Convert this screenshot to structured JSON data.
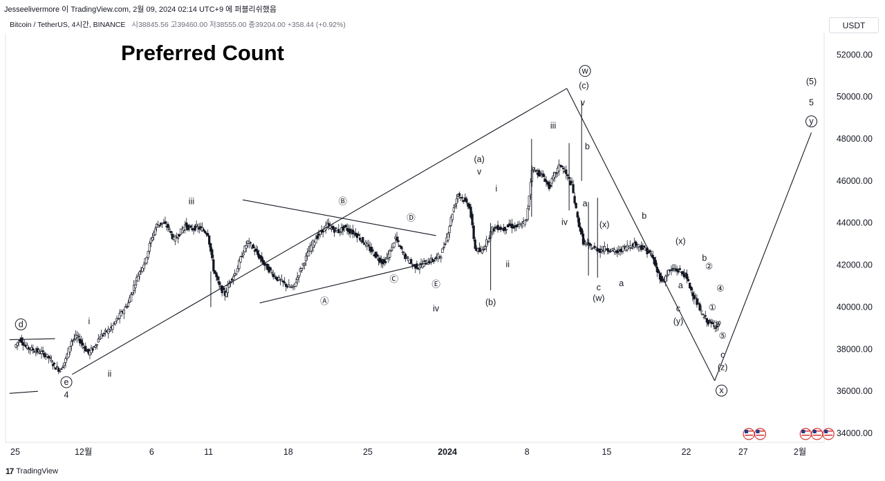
{
  "header": {
    "attribution": "Jesseelivermore 이 TradingView.com, 2월 09, 2024 02:14 UTC+9 에 퍼블리쉬했음"
  },
  "symbol": {
    "name": "Bitcoin / TetherUS, 4시간, BINANCE",
    "ohlc": "시38845.56  고39460.00  저38555.00  종39204.00  +358.44 (+0.92%)"
  },
  "currency": "USDT",
  "footer": {
    "brand": "TradingView",
    "logo": "17"
  },
  "chart_data": {
    "type": "candlestick",
    "title": "Preferred Count",
    "ylim": [
      33600,
      53000
    ],
    "y_ticks": [
      "52000.00",
      "50000.00",
      "48000.00",
      "46000.00",
      "44000.00",
      "42000.00",
      "40000.00",
      "38000.00",
      "36000.00",
      "34000.00"
    ],
    "x_ticks": [
      {
        "label": "25",
        "x": 0
      },
      {
        "label": "12월",
        "x": 6
      },
      {
        "label": "6",
        "x": 12
      },
      {
        "label": "11",
        "x": 17
      },
      {
        "label": "18",
        "x": 24
      },
      {
        "label": "25",
        "x": 31
      },
      {
        "label": "2024",
        "x": 38,
        "bold": true
      },
      {
        "label": "8",
        "x": 45
      },
      {
        "label": "15",
        "x": 52
      },
      {
        "label": "22",
        "x": 59
      },
      {
        "label": "27",
        "x": 64
      },
      {
        "label": "2월",
        "x": 69
      }
    ],
    "price_series": [
      [
        0,
        38100
      ],
      [
        0.5,
        38500
      ],
      [
        1,
        38100
      ],
      [
        1.5,
        38000
      ],
      [
        2,
        37900
      ],
      [
        2.5,
        37800
      ],
      [
        3,
        37600
      ],
      [
        3.5,
        37200
      ],
      [
        4,
        37000
      ],
      [
        4.5,
        37500
      ],
      [
        5,
        38400
      ],
      [
        5.5,
        38600
      ],
      [
        6,
        38200
      ],
      [
        6.5,
        37800
      ],
      [
        7,
        38100
      ],
      [
        7.5,
        38600
      ],
      [
        8,
        38800
      ],
      [
        8.5,
        39000
      ],
      [
        9,
        39400
      ],
      [
        9.5,
        39800
      ],
      [
        10,
        40200
      ],
      [
        10.5,
        41000
      ],
      [
        11,
        41700
      ],
      [
        11.5,
        42200
      ],
      [
        12,
        43200
      ],
      [
        12.5,
        43900
      ],
      [
        13,
        44000
      ],
      [
        13.5,
        43800
      ],
      [
        14,
        43200
      ],
      [
        14.5,
        43500
      ],
      [
        15,
        43900
      ],
      [
        15.5,
        43700
      ],
      [
        16,
        43800
      ],
      [
        16.5,
        43700
      ],
      [
        17,
        43500
      ],
      [
        17.5,
        41800
      ],
      [
        18,
        41000
      ],
      [
        18.5,
        40600
      ],
      [
        19,
        41300
      ],
      [
        19.5,
        41700
      ],
      [
        20,
        42500
      ],
      [
        20.5,
        43100
      ],
      [
        21,
        42800
      ],
      [
        21.5,
        42400
      ],
      [
        22,
        42000
      ],
      [
        22.5,
        41700
      ],
      [
        23,
        41400
      ],
      [
        23.5,
        41200
      ],
      [
        24,
        41000
      ],
      [
        24.5,
        40900
      ],
      [
        25,
        41600
      ],
      [
        25.5,
        42200
      ],
      [
        26,
        42800
      ],
      [
        26.5,
        43300
      ],
      [
        27,
        43600
      ],
      [
        27.5,
        43900
      ],
      [
        28,
        43700
      ],
      [
        28.5,
        43600
      ],
      [
        29,
        43800
      ],
      [
        29.5,
        43600
      ],
      [
        30,
        43500
      ],
      [
        30.5,
        43200
      ],
      [
        31,
        42900
      ],
      [
        31.5,
        42600
      ],
      [
        32,
        42300
      ],
      [
        32.5,
        42100
      ],
      [
        33,
        42600
      ],
      [
        33.5,
        43300
      ],
      [
        34,
        42700
      ],
      [
        34.5,
        42300
      ],
      [
        35,
        42000
      ],
      [
        35.5,
        41900
      ],
      [
        36,
        42100
      ],
      [
        36.5,
        42200
      ],
      [
        37,
        42300
      ],
      [
        37.5,
        42500
      ],
      [
        38,
        43300
      ],
      [
        38.5,
        44500
      ],
      [
        39,
        45400
      ],
      [
        39.5,
        45100
      ],
      [
        40,
        44800
      ],
      [
        40.5,
        42800
      ],
      [
        41,
        42600
      ],
      [
        41.5,
        43100
      ],
      [
        42,
        43700
      ],
      [
        42.5,
        43800
      ],
      [
        43,
        43700
      ],
      [
        43.5,
        43900
      ],
      [
        44,
        43800
      ],
      [
        44.5,
        43900
      ],
      [
        45,
        44100
      ],
      [
        45.5,
        46600
      ],
      [
        46,
        46400
      ],
      [
        46.5,
        46200
      ],
      [
        47,
        45700
      ],
      [
        47.5,
        46300
      ],
      [
        48,
        46800
      ],
      [
        48.5,
        46300
      ],
      [
        49,
        45800
      ],
      [
        49.5,
        44200
      ],
      [
        50,
        43100
      ],
      [
        50.5,
        42900
      ],
      [
        51,
        42800
      ],
      [
        51.5,
        42700
      ],
      [
        52,
        42800
      ],
      [
        52.5,
        42700
      ],
      [
        53,
        42600
      ],
      [
        53.5,
        42800
      ],
      [
        54,
        42900
      ],
      [
        54.5,
        43000
      ],
      [
        55,
        42900
      ],
      [
        55.5,
        42700
      ],
      [
        56,
        42500
      ],
      [
        56.5,
        41700
      ],
      [
        57,
        41200
      ],
      [
        57.5,
        41700
      ],
      [
        58,
        41800
      ],
      [
        58.5,
        41700
      ],
      [
        59,
        41500
      ],
      [
        59.5,
        40800
      ],
      [
        60,
        40200
      ],
      [
        60.5,
        39600
      ],
      [
        61,
        39300
      ],
      [
        61.5,
        39100
      ],
      [
        62,
        39200
      ]
    ],
    "trendlines": [
      {
        "points": [
          [
            5,
            36800
          ],
          [
            48.5,
            50400
          ]
        ]
      },
      {
        "points": [
          [
            20,
            45100
          ],
          [
            37,
            43400
          ]
        ]
      },
      {
        "points": [
          [
            21.5,
            40200
          ],
          [
            37,
            42200
          ]
        ]
      },
      {
        "points": [
          [
            48.5,
            50400
          ],
          [
            61.5,
            36500
          ]
        ]
      },
      {
        "points": [
          [
            61.5,
            36500
          ],
          [
            70,
            48300
          ]
        ]
      },
      {
        "points": [
          [
            -0.5,
            38450
          ],
          [
            3.5,
            38500
          ]
        ]
      },
      {
        "points": [
          [
            -0.5,
            35900
          ],
          [
            2,
            36000
          ]
        ]
      }
    ],
    "annotations": [
      {
        "text": "d",
        "x": 0.5,
        "y": 39050,
        "circled": true
      },
      {
        "text": "e",
        "x": 4.5,
        "y": 36300,
        "circled": true
      },
      {
        "text": "4",
        "x": 4.5,
        "y": 35700
      },
      {
        "text": "i",
        "x": 6.5,
        "y": 39200
      },
      {
        "text": "ii",
        "x": 8.3,
        "y": 36700
      },
      {
        "text": "iii",
        "x": 15.5,
        "y": 44900
      },
      {
        "text": "Ⓐ",
        "x": 27.2,
        "y": 40150
      },
      {
        "text": "Ⓑ",
        "x": 28.8,
        "y": 44900
      },
      {
        "text": "Ⓒ",
        "x": 33.3,
        "y": 41200
      },
      {
        "text": "Ⓓ",
        "x": 34.8,
        "y": 44100
      },
      {
        "text": "Ⓔ",
        "x": 37.0,
        "y": 40950
      },
      {
        "text": "iv",
        "x": 37.0,
        "y": 39800
      },
      {
        "text": "(a)",
        "x": 40.8,
        "y": 46900
      },
      {
        "text": "v",
        "x": 40.8,
        "y": 46300
      },
      {
        "text": "i",
        "x": 42.3,
        "y": 45500
      },
      {
        "text": "ii",
        "x": 43.3,
        "y": 41900
      },
      {
        "text": "(b)",
        "x": 41.8,
        "y": 40100
      },
      {
        "text": "iii",
        "x": 47.3,
        "y": 48500
      },
      {
        "text": "iv",
        "x": 48.3,
        "y": 43900
      },
      {
        "text": "v",
        "x": 49.9,
        "y": 49600
      },
      {
        "text": "w",
        "x": 50.1,
        "y": 51100,
        "circled": true
      },
      {
        "text": "(c)",
        "x": 50.0,
        "y": 50400
      },
      {
        "text": "b",
        "x": 50.3,
        "y": 47500
      },
      {
        "text": "a",
        "x": 50.1,
        "y": 44800
      },
      {
        "text": "(x)",
        "x": 51.8,
        "y": 43800
      },
      {
        "text": "c",
        "x": 51.3,
        "y": 40800
      },
      {
        "text": "(w)",
        "x": 51.3,
        "y": 40300
      },
      {
        "text": "a",
        "x": 53.3,
        "y": 41000
      },
      {
        "text": "b",
        "x": 55.3,
        "y": 44200
      },
      {
        "text": "(x)",
        "x": 58.5,
        "y": 43000
      },
      {
        "text": "a",
        "x": 58.5,
        "y": 40900
      },
      {
        "text": "c",
        "x": 58.3,
        "y": 39800
      },
      {
        "text": "(y)",
        "x": 58.3,
        "y": 39200
      },
      {
        "text": "b",
        "x": 60.6,
        "y": 42200
      },
      {
        "text": "②",
        "x": 61.0,
        "y": 41800
      },
      {
        "text": "④",
        "x": 62.0,
        "y": 40750
      },
      {
        "text": "①",
        "x": 61.3,
        "y": 39850
      },
      {
        "text": "③",
        "x": 61.6,
        "y": 39050
      },
      {
        "text": "⑤",
        "x": 62.2,
        "y": 38500
      },
      {
        "text": "c",
        "x": 62.2,
        "y": 37600
      },
      {
        "text": "(z)",
        "x": 62.2,
        "y": 37000
      },
      {
        "text": "x",
        "x": 62.1,
        "y": 35900,
        "circled": true
      },
      {
        "text": "(5)",
        "x": 70.0,
        "y": 50600
      },
      {
        "text": "5",
        "x": 70.0,
        "y": 49600
      },
      {
        "text": "y",
        "x": 70.0,
        "y": 48700,
        "circled": true
      }
    ],
    "event_flags": [
      {
        "x": 64.5,
        "icon": "us-flag-icon"
      },
      {
        "x": 65.5,
        "icon": "us-flag-icon"
      },
      {
        "x": 69.5,
        "icon": "us-flag-icon"
      },
      {
        "x": 70.5,
        "icon": "us-flag-icon"
      },
      {
        "x": 71.5,
        "icon": "us-flag-icon"
      }
    ]
  }
}
